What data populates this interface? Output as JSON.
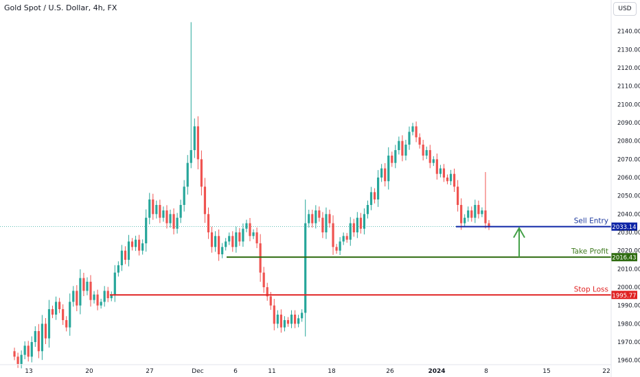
{
  "header": {
    "title": "Gold Spot / U.S. Dollar, 4h, FX",
    "currency_button": "USD"
  },
  "chart_data": {
    "type": "candlestick",
    "title": "Gold Spot / U.S. Dollar, 4h, FX",
    "ylim": [
      1955,
      2150
    ],
    "y_ticks": [
      1960,
      1970,
      1980,
      1990,
      2000,
      2010,
      2020,
      2030,
      2040,
      2050,
      2060,
      2070,
      2080,
      2090,
      2100,
      2110,
      2120,
      2130,
      2140
    ],
    "x_ticks": [
      {
        "label": "13",
        "bold": false
      },
      {
        "label": "20",
        "bold": false
      },
      {
        "label": "27",
        "bold": false
      },
      {
        "label": "Dec",
        "bold": false
      },
      {
        "label": "6",
        "bold": false
      },
      {
        "label": "11",
        "bold": false
      },
      {
        "label": "18",
        "bold": false
      },
      {
        "label": "26",
        "bold": false
      },
      {
        "label": "2024",
        "bold": true
      },
      {
        "label": "8",
        "bold": false
      },
      {
        "label": "15",
        "bold": false
      },
      {
        "label": "22",
        "bold": false
      }
    ],
    "last_price": 2033.14,
    "levels": [
      {
        "name": "Sell Entry",
        "value": 2033.14,
        "label": "2033.14",
        "color": "#0d24a6",
        "text_color": "#1e3a9e"
      },
      {
        "name": "Take Profit",
        "value": 2016.43,
        "label": "2016.43",
        "color": "#2e6b0f",
        "text_color": "#3f7a1f"
      },
      {
        "name": "Stop Loss",
        "value": 1995.77,
        "label": "1995.77",
        "color": "#e02222",
        "text_color": "#e02222"
      }
    ],
    "colors": {
      "up": "#26a69a",
      "down": "#ef5350",
      "arrow": "#43a047"
    },
    "price_path": [
      1965,
      1962,
      1958,
      1963,
      1968,
      1962,
      1970,
      1976,
      1965,
      1980,
      1972,
      1988,
      1985,
      1992,
      1988,
      1982,
      1978,
      1992,
      1998,
      1990,
      2005,
      1998,
      2003,
      1993,
      1996,
      1990,
      1992,
      1998,
      1994,
      1996,
      2008,
      2012,
      2020,
      2015,
      2025,
      2022,
      2026,
      2020,
      2024,
      2038,
      2048,
      2040,
      2045,
      2038,
      2042,
      2035,
      2040,
      2032,
      2038,
      2045,
      2055,
      2068,
      2075,
      2088,
      2070,
      2055,
      2040,
      2030,
      2022,
      2028,
      2018,
      2022,
      2025,
      2028,
      2022,
      2030,
      2025,
      2032,
      2035,
      2028,
      2030,
      2024,
      2008,
      2000,
      1995,
      1990,
      1980,
      1985,
      1978,
      1982,
      1980,
      1985,
      1980,
      1983,
      1986,
      2035,
      2040,
      2035,
      2042,
      2038,
      2030,
      2040,
      2035,
      2022,
      2020,
      2025,
      2028,
      2026,
      2035,
      2030,
      2038,
      2032,
      2040,
      2045,
      2052,
      2048,
      2060,
      2065,
      2058,
      2072,
      2068,
      2075,
      2080,
      2072,
      2078,
      2085,
      2088,
      2082,
      2078,
      2072,
      2075,
      2068,
      2070,
      2062,
      2065,
      2060,
      2058,
      2062,
      2055,
      2045,
      2035,
      2038,
      2042,
      2038,
      2045,
      2040,
      2042,
      2035,
      2033
    ]
  }
}
